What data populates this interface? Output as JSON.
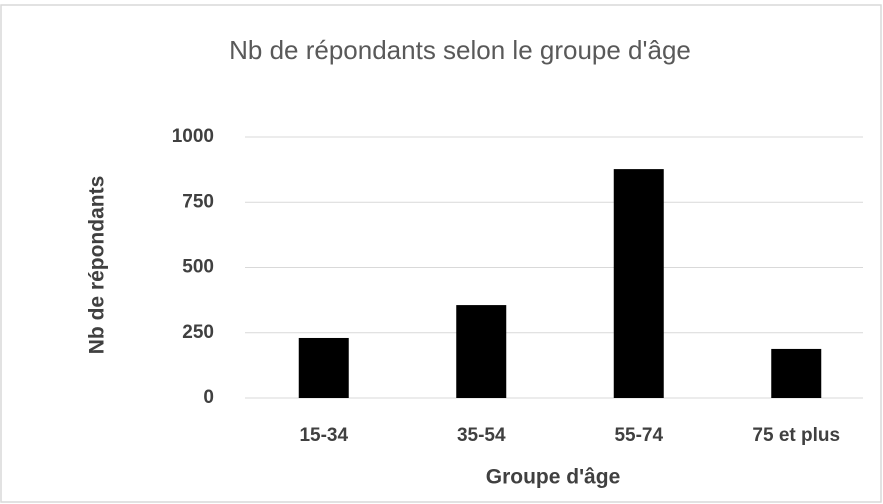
{
  "chart_data": {
    "type": "bar",
    "title": "Nb de répondants selon le groupe d'âge",
    "x_label": "Groupe d'âge",
    "y_label": "Nb de répondants",
    "categories": [
      "15-34",
      "35-54",
      "55-74",
      "75 et plus"
    ],
    "values": [
      230,
      356,
      877,
      188
    ],
    "color": "#000000",
    "ylim": [
      0,
      1000
    ],
    "yticks": [
      0,
      250,
      500,
      750,
      1000
    ],
    "grid": true
  }
}
